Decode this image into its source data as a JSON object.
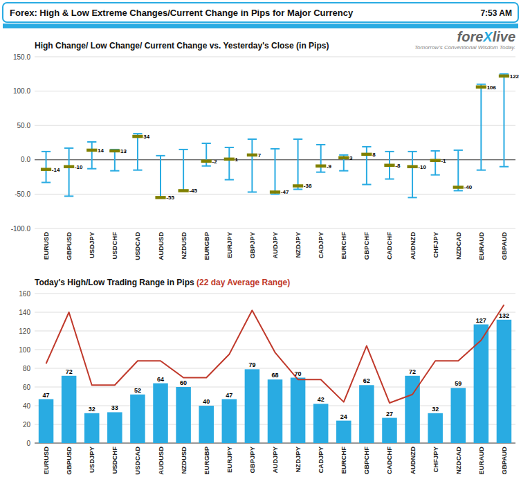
{
  "chart_data": [
    {
      "type": "high_low",
      "title": "High Change/ Low Change/ Current Change vs. Yesterday's Close (in Pips)",
      "annotations": [
        "Forex:  High & Low Extreme Changes/Current Change in Pips for Major Currency",
        "7:53 AM",
        "fore",
        "X",
        "live",
        "Tomorrow's Conventional Wisdom Today."
      ],
      "categories": [
        "EURUSD",
        "GBPUSD",
        "USDJPY",
        "USDCHF",
        "USDCAD",
        "AUDUSD",
        "NZDUSD",
        "EURGBP",
        "EURJPY",
        "GBPJPY",
        "AUDJPY",
        "NZDJPY",
        "CADJPY",
        "EURCHF",
        "GBPCHF",
        "CADCHF",
        "AUDNZD",
        "CHFJPY",
        "NZDCAD",
        "EURAUD",
        "GBPAUD"
      ],
      "series": [
        {
          "type": "high",
          "color": "#29ABE2",
          "values": [
            12,
            17,
            26,
            15,
            38,
            6,
            15,
            24,
            18,
            30,
            16,
            30,
            22,
            7,
            19,
            12,
            12,
            13,
            14,
            110,
            125
          ]
        },
        {
          "type": "low",
          "color": "#29ABE2",
          "values": [
            -33,
            -53,
            -13,
            -16,
            -15,
            -55,
            -45,
            -9,
            -29,
            -47,
            -50,
            -43,
            -18,
            -16,
            -36,
            -28,
            -55,
            -22,
            -45,
            -15,
            -10
          ]
        },
        {
          "type": "current",
          "color": "#808000",
          "data_labels": true,
          "values": [
            -14,
            -10,
            14,
            13,
            34,
            -55,
            -45,
            -2,
            1,
            7,
            -47,
            -38,
            -9,
            3,
            8,
            -8,
            -10,
            -1,
            -40,
            106,
            122
          ]
        }
      ],
      "ylim": [
        -100,
        150
      ],
      "yticks": [
        {
          "value": -100,
          "label": "-100.0"
        },
        {
          "value": -50,
          "label": "-50.0"
        },
        {
          "value": 0,
          "label": "0.0"
        },
        {
          "value": 50,
          "label": "50.0"
        },
        {
          "value": 100,
          "label": "100.0"
        },
        {
          "value": 150,
          "label": "150.0"
        }
      ],
      "grid": true
    },
    {
      "type": "bar",
      "title": "Today's High/Low Trading Range in Pips ",
      "subtitle": "(22 day Average Range)",
      "categories": [
        "EURUSD",
        "GBPUSD",
        "USDJPY",
        "USDCHF",
        "USDCAD",
        "AUDUSD",
        "NZDUSD",
        "EURGBP",
        "EURJPY",
        "GBPJPY",
        "AUDJPY",
        "NZDJPY",
        "CADJPY",
        "EURCHF",
        "GBPCHF",
        "CADCHF",
        "AUDNZD",
        "CHFJPY",
        "NZDCAD",
        "EURAUD",
        "GBPAUD"
      ],
      "series": [
        {
          "type": "bar",
          "color": "#29ABE2",
          "data_labels": true,
          "values": [
            47,
            72,
            32,
            33,
            52,
            64,
            60,
            40,
            47,
            79,
            68,
            70,
            42,
            24,
            62,
            27,
            72,
            32,
            59,
            127,
            132
          ]
        },
        {
          "type": "line",
          "color": "#C0392B",
          "values": [
            85,
            140,
            62,
            62,
            88,
            88,
            70,
            70,
            95,
            142,
            97,
            68,
            68,
            44,
            104,
            43,
            52,
            88,
            88,
            110,
            148
          ]
        }
      ],
      "ylim": [
        0,
        160
      ],
      "yticks": [
        0,
        20,
        40,
        60,
        80,
        100,
        120,
        140,
        160
      ],
      "grid": true
    }
  ]
}
